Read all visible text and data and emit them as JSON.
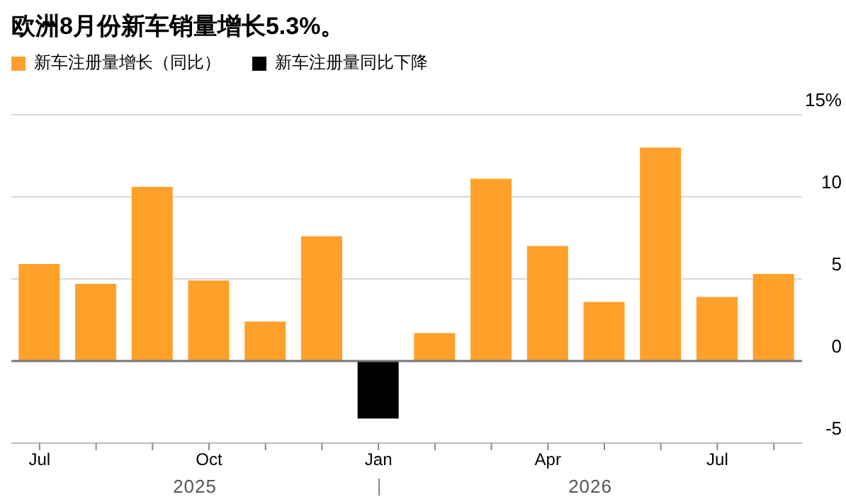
{
  "chart_data": {
    "type": "bar",
    "title": "欧洲8月份新车销量增长5.3%。",
    "categories": [
      "Jul",
      null,
      null,
      "Oct",
      null,
      null,
      "Jan",
      null,
      null,
      "Apr",
      null,
      null,
      "Jul",
      null
    ],
    "series": [
      {
        "name": "新车注册量增长（同比）",
        "color": "#ffa02a",
        "values": [
          5.9,
          4.7,
          10.6,
          4.9,
          2.4,
          7.6,
          null,
          1.7,
          11.1,
          7.0,
          3.6,
          13.0,
          3.9,
          5.3
        ]
      },
      {
        "name": "新车注册量同比下降",
        "color": "#000000",
        "values": [
          null,
          null,
          null,
          null,
          null,
          null,
          -3.5,
          null,
          null,
          null,
          null,
          null,
          null,
          null
        ]
      }
    ],
    "stacked": true,
    "ylim": [
      -5,
      15
    ],
    "yticks": [
      -5,
      0,
      5,
      10,
      {
        "value": 15,
        "label": "15%"
      }
    ],
    "grid": "y",
    "legend": "top left",
    "annotations": [
      "2025",
      "2026"
    ]
  }
}
